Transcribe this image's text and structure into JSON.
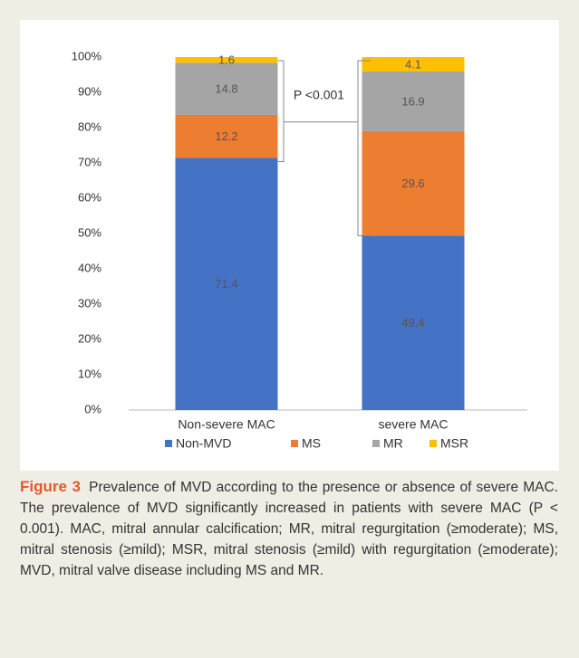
{
  "chart_data": {
    "type": "stacked_bar",
    "categories": [
      "Non-severe MAC",
      "severe MAC"
    ],
    "series": [
      {
        "name": "Non-MVD",
        "color": "#4472c4",
        "values": [
          71.4,
          49.4
        ]
      },
      {
        "name": "MS",
        "color": "#ed7d31",
        "values": [
          12.2,
          29.6
        ]
      },
      {
        "name": "MR",
        "color": "#a5a5a5",
        "values": [
          14.8,
          16.9
        ]
      },
      {
        "name": "MSR",
        "color": "#ffc000",
        "values": [
          1.6,
          4.1
        ]
      }
    ],
    "ylim": [
      0,
      100
    ],
    "yticks": [
      {
        "value": 0,
        "label": "0%"
      },
      {
        "value": 10,
        "label": "10%"
      },
      {
        "value": 20,
        "label": "20%"
      },
      {
        "value": 30,
        "label": "30%"
      },
      {
        "value": 40,
        "label": "40%"
      },
      {
        "value": 50,
        "label": "50%"
      },
      {
        "value": 60,
        "label": "60%"
      },
      {
        "value": 70,
        "label": "70%"
      },
      {
        "value": 80,
        "label": "80%"
      },
      {
        "value": 90,
        "label": "90%"
      },
      {
        "value": 100,
        "label": "100%"
      }
    ],
    "annotation": "P <0.001",
    "legend": "bottom"
  },
  "caption": {
    "label": "Figure 3",
    "text": "Prevalence of MVD according to the presence or absence of severe MAC. The prevalence of MVD significantly increased in patients with severe MAC (P < 0.001). MAC, mitral annular calcification; MR, mitral regurgitation (≥moderate); MS, mitral stenosis (≥mild); MSR, mitral stenosis (≥mild) with regurgitation (≥moderate); MVD, mitral valve disease including MS and MR."
  }
}
